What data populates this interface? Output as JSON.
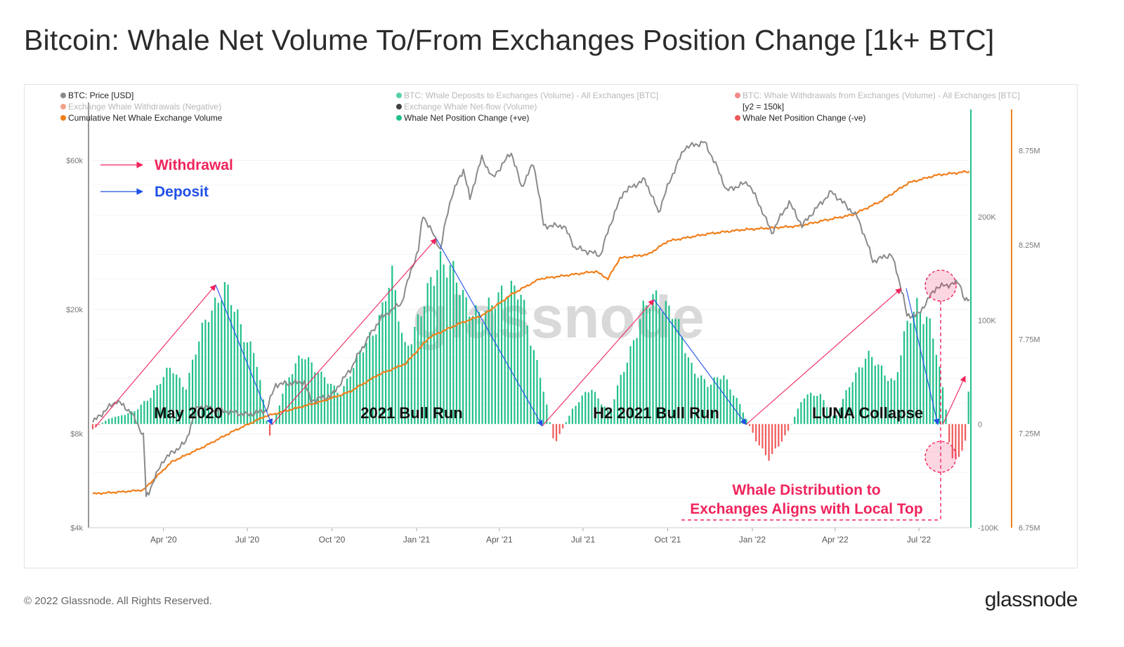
{
  "title": "Bitcoin: Whale Net Volume To/From Exchanges Position Change [1k+ BTC]",
  "footer": "© 2022 Glassnode. All Rights Reserved.",
  "brand": "glassnode",
  "watermark": "glassnode",
  "colors": {
    "price": "#8a8a8a",
    "deposits": "#2fc58f",
    "withdrawals": "#f06a6a",
    "netflow": "#111111",
    "cumulative": "#f07f1c",
    "positive": "#22c08a",
    "negative": "#f05a5a",
    "withdrawal_arrow": "#f0245c",
    "deposit_arrow": "#1f50e8",
    "highlight": "#f0245c"
  },
  "legend": [
    {
      "label": "BTC: Price [USD]",
      "color": "#8a8a8a",
      "faded": false
    },
    {
      "label": "BTC: Whale Deposits to Exchanges (Volume) - All Exchanges [BTC]",
      "color": "#2fc58f",
      "faded": true
    },
    {
      "label": "BTC: Whale Withdrawals from Exchanges (Volume) - All Exchanges [BTC]",
      "color": "#f06a6a",
      "faded": true
    },
    {
      "label": "Exchange Whale Withdrawals (Negative)",
      "color": "#f08a6a",
      "faded": true
    },
    {
      "label": "Exchange Whale Net-flow (Volume)",
      "color": "#111111",
      "faded": true
    },
    {
      "label": "[y2 = 150k]",
      "color": null,
      "faded": false
    },
    {
      "label": "Cumulative Net Whale Exchange Volume",
      "color": "#f07f1c",
      "faded": false
    },
    {
      "label": "Whale Net Position Change (+ve)",
      "color": "#22c08a",
      "faded": false
    },
    {
      "label": "Whale Net Position Change (-ve)",
      "color": "#f05a5a",
      "faded": false
    }
  ],
  "annotations": {
    "withdrawal_label": "Withdrawal",
    "deposit_label": "Deposit",
    "phases": [
      "May 2020",
      "2021 Bull Run",
      "H2 2021 Bull Run",
      "LUNA Collapse"
    ],
    "note_line1": "Whale Distribution to",
    "note_line2": "Exchanges Aligns with Local Top"
  },
  "chart_data": {
    "type": "line",
    "title": "Bitcoin: Whale Net Volume To/From Exchanges Position Change [1k+ BTC]",
    "x_range": [
      "2020-01-15",
      "2022-08-25"
    ],
    "x_ticks": [
      "Apr '20",
      "Jul '20",
      "Oct '20",
      "Jan '21",
      "Apr '21",
      "Jul '21",
      "Oct '21",
      "Jan '22",
      "Apr '22",
      "Jul '22"
    ],
    "y_price": {
      "scale": "log",
      "ticks": [
        "$4k",
        "$8k",
        "$20k",
        "$60k"
      ],
      "values": [
        4000,
        8000,
        20000,
        60000
      ],
      "range": [
        4000,
        85000
      ]
    },
    "y_position": {
      "ticks": [
        "-100K",
        "0",
        "100K",
        "200K"
      ],
      "values": [
        -100000,
        0,
        100000,
        200000
      ],
      "range": [
        -100000,
        300000
      ]
    },
    "y_cumulative": {
      "ticks": [
        "6.75M",
        "7.25M",
        "7.75M",
        "8.25M",
        "8.75M"
      ],
      "values": [
        6750000,
        7250000,
        7750000,
        8250000,
        8750000
      ],
      "range": [
        6750000,
        8950000
      ]
    },
    "series": [
      {
        "name": "BTC: Price [USD]",
        "axis": "price",
        "points": [
          [
            "2020-01-15",
            8700
          ],
          [
            "2020-02-10",
            10200
          ],
          [
            "2020-02-25",
            9400
          ],
          [
            "2020-03-10",
            7900
          ],
          [
            "2020-03-13",
            5000
          ],
          [
            "2020-03-16",
            5200
          ],
          [
            "2020-04-01",
            6600
          ],
          [
            "2020-04-25",
            7500
          ],
          [
            "2020-05-08",
            9800
          ],
          [
            "2020-06-01",
            9500
          ],
          [
            "2020-07-01",
            9200
          ],
          [
            "2020-07-22",
            9500
          ],
          [
            "2020-08-01",
            11500
          ],
          [
            "2020-09-01",
            11700
          ],
          [
            "2020-09-08",
            10200
          ],
          [
            "2020-10-01",
            10600
          ],
          [
            "2020-10-21",
            12800
          ],
          [
            "2020-11-05",
            15400
          ],
          [
            "2020-11-24",
            18800
          ],
          [
            "2020-12-16",
            21000
          ],
          [
            "2021-01-03",
            31000
          ],
          [
            "2021-01-08",
            40000
          ],
          [
            "2021-01-27",
            31000
          ],
          [
            "2021-02-08",
            46000
          ],
          [
            "2021-02-21",
            56000
          ],
          [
            "2021-02-28",
            45000
          ],
          [
            "2021-03-13",
            61000
          ],
          [
            "2021-03-25",
            52500
          ],
          [
            "2021-04-14",
            63500
          ],
          [
            "2021-04-25",
            49000
          ],
          [
            "2021-05-08",
            58500
          ],
          [
            "2021-05-19",
            37000
          ],
          [
            "2021-06-10",
            37000
          ],
          [
            "2021-06-22",
            31500
          ],
          [
            "2021-07-20",
            29800
          ],
          [
            "2021-08-14",
            47500
          ],
          [
            "2021-09-06",
            52000
          ],
          [
            "2021-09-21",
            40700
          ],
          [
            "2021-10-20",
            66000
          ],
          [
            "2021-11-10",
            68500
          ],
          [
            "2021-12-04",
            48000
          ],
          [
            "2021-12-27",
            51000
          ],
          [
            "2022-01-22",
            35000
          ],
          [
            "2022-02-10",
            44000
          ],
          [
            "2022-02-24",
            37000
          ],
          [
            "2022-03-28",
            47500
          ],
          [
            "2022-04-25",
            39500
          ],
          [
            "2022-05-12",
            28500
          ],
          [
            "2022-06-01",
            30000
          ],
          [
            "2022-06-14",
            22000
          ],
          [
            "2022-06-18",
            19000
          ],
          [
            "2022-07-01",
            19300
          ],
          [
            "2022-07-20",
            23500
          ],
          [
            "2022-08-14",
            24400
          ],
          [
            "2022-08-20",
            21300
          ],
          [
            "2022-08-25",
            21500
          ]
        ]
      },
      {
        "name": "Cumulative Net Whale Exchange Volume",
        "axis": "cumulative",
        "points": [
          [
            "2020-01-15",
            6930000
          ],
          [
            "2020-02-15",
            6940000
          ],
          [
            "2020-03-10",
            6950000
          ],
          [
            "2020-03-20",
            7000000
          ],
          [
            "2020-04-10",
            7100000
          ],
          [
            "2020-05-15",
            7180000
          ],
          [
            "2020-06-15",
            7260000
          ],
          [
            "2020-07-20",
            7340000
          ],
          [
            "2020-08-20",
            7380000
          ],
          [
            "2020-09-20",
            7420000
          ],
          [
            "2020-10-20",
            7470000
          ],
          [
            "2020-11-20",
            7560000
          ],
          [
            "2020-12-20",
            7620000
          ],
          [
            "2021-01-15",
            7760000
          ],
          [
            "2021-02-15",
            7830000
          ],
          [
            "2021-03-15",
            7880000
          ],
          [
            "2021-04-15",
            7990000
          ],
          [
            "2021-05-15",
            8070000
          ],
          [
            "2021-06-15",
            8090000
          ],
          [
            "2021-07-15",
            8110000
          ],
          [
            "2021-07-28",
            8070000
          ],
          [
            "2021-08-10",
            8180000
          ],
          [
            "2021-09-10",
            8200000
          ],
          [
            "2021-10-01",
            8270000
          ],
          [
            "2021-11-15",
            8310000
          ],
          [
            "2021-12-20",
            8330000
          ],
          [
            "2022-01-20",
            8340000
          ],
          [
            "2022-02-20",
            8350000
          ],
          [
            "2022-03-20",
            8380000
          ],
          [
            "2022-04-20",
            8410000
          ],
          [
            "2022-05-20",
            8480000
          ],
          [
            "2022-06-20",
            8580000
          ],
          [
            "2022-07-20",
            8620000
          ],
          [
            "2022-08-25",
            8640000
          ]
        ]
      },
      {
        "name": "Whale Net Position Change (+ve) / (-ve)",
        "axis": "position",
        "points": [
          [
            "2020-01-15",
            -5000
          ],
          [
            "2020-02-01",
            5000
          ],
          [
            "2020-03-01",
            12000
          ],
          [
            "2020-03-20",
            30000
          ],
          [
            "2020-04-10",
            55000
          ],
          [
            "2020-04-25",
            35000
          ],
          [
            "2020-05-20",
            110000
          ],
          [
            "2020-06-05",
            130000
          ],
          [
            "2020-06-20",
            105000
          ],
          [
            "2020-07-10",
            65000
          ],
          [
            "2020-07-25",
            -12000
          ],
          [
            "2020-08-10",
            35000
          ],
          [
            "2020-09-01",
            70000
          ],
          [
            "2020-09-20",
            45000
          ],
          [
            "2020-10-10",
            30000
          ],
          [
            "2020-10-25",
            55000
          ],
          [
            "2020-11-25",
            110000
          ],
          [
            "2020-12-05",
            140000
          ],
          [
            "2020-12-20",
            75000
          ],
          [
            "2021-01-05",
            100000
          ],
          [
            "2021-01-25",
            165000
          ],
          [
            "2021-02-20",
            125000
          ],
          [
            "2021-03-15",
            100000
          ],
          [
            "2021-04-05",
            135000
          ],
          [
            "2021-04-25",
            120000
          ],
          [
            "2021-05-15",
            50000
          ],
          [
            "2021-05-31",
            -20000
          ],
          [
            "2021-06-20",
            15000
          ],
          [
            "2021-07-10",
            35000
          ],
          [
            "2021-07-30",
            10000
          ],
          [
            "2021-08-20",
            70000
          ],
          [
            "2021-09-03",
            105000
          ],
          [
            "2021-09-20",
            125000
          ],
          [
            "2021-10-05",
            110000
          ],
          [
            "2021-10-25",
            60000
          ],
          [
            "2021-11-15",
            35000
          ],
          [
            "2021-11-30",
            50000
          ],
          [
            "2021-12-20",
            15000
          ],
          [
            "2022-01-05",
            -15000
          ],
          [
            "2022-01-20",
            -35000
          ],
          [
            "2022-02-10",
            -5000
          ],
          [
            "2022-02-25",
            25000
          ],
          [
            "2022-03-15",
            30000
          ],
          [
            "2022-04-01",
            5000
          ],
          [
            "2022-04-20",
            45000
          ],
          [
            "2022-05-05",
            65000
          ],
          [
            "2022-05-20",
            55000
          ],
          [
            "2022-06-05",
            40000
          ],
          [
            "2022-06-20",
            100000
          ],
          [
            "2022-06-30",
            120000
          ],
          [
            "2022-07-15",
            90000
          ],
          [
            "2022-07-30",
            20000
          ],
          [
            "2022-08-05",
            -35000
          ],
          [
            "2022-08-20",
            -25000
          ],
          [
            "2022-08-25",
            45000
          ]
        ]
      }
    ],
    "watermark": "glassnode"
  }
}
